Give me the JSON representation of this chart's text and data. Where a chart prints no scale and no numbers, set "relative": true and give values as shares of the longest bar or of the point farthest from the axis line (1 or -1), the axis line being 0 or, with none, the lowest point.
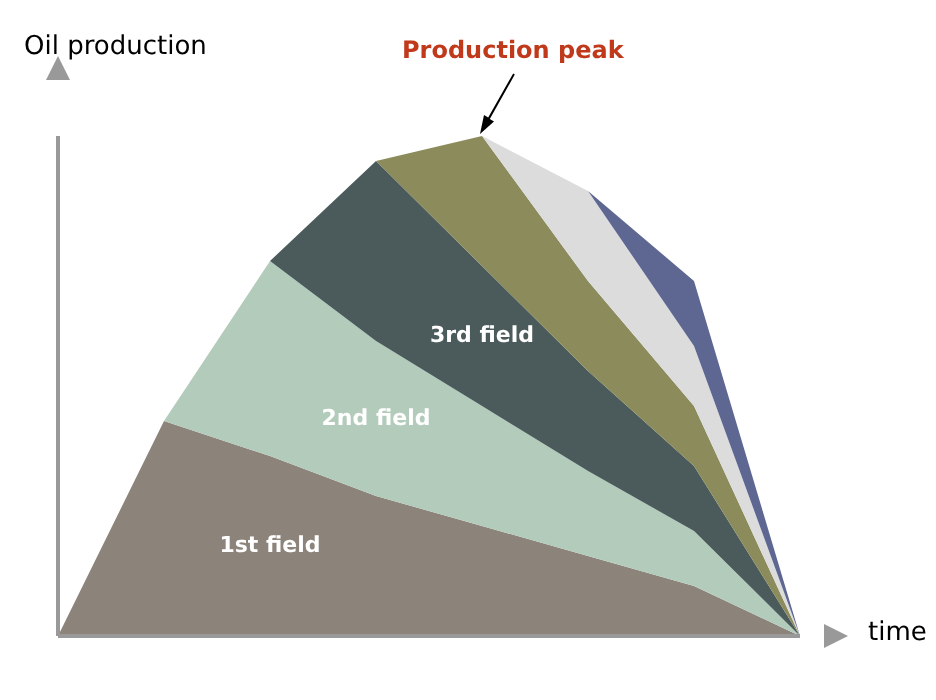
{
  "chart_data": {
    "type": "area",
    "stacked": true,
    "relative": true,
    "xlabel": "time",
    "ylabel": "Oil production",
    "annotations": [
      "Production peak"
    ],
    "categories": [
      null,
      null,
      null,
      null,
      null,
      null,
      null,
      null
    ],
    "series": [
      {
        "name": "1st field",
        "color": "#8c837a",
        "values": [
          0,
          0.43,
          0.36,
          0.28,
          0.22,
          0.16,
          0.1,
          0
        ]
      },
      {
        "name": "2nd field",
        "color": "#b2cbbb",
        "values": [
          null,
          0,
          0.39,
          0.31,
          0.24,
          0.17,
          0.11,
          0
        ]
      },
      {
        "name": "3rd field",
        "color": "#4b5b5b",
        "values": [
          null,
          null,
          0,
          0.36,
          0.28,
          0.2,
          0.13,
          0
        ]
      },
      {
        "color": "#8b8b5c",
        "values": [
          null,
          null,
          null,
          0,
          0.26,
          0.18,
          0.12,
          0
        ]
      },
      {
        "color": "#dcdcdc",
        "values": [
          null,
          null,
          null,
          null,
          0,
          0.18,
          0.12,
          0
        ]
      },
      {
        "color": "#5d6791",
        "values": [
          null,
          null,
          null,
          null,
          null,
          0,
          0.13,
          0
        ]
      }
    ]
  }
}
